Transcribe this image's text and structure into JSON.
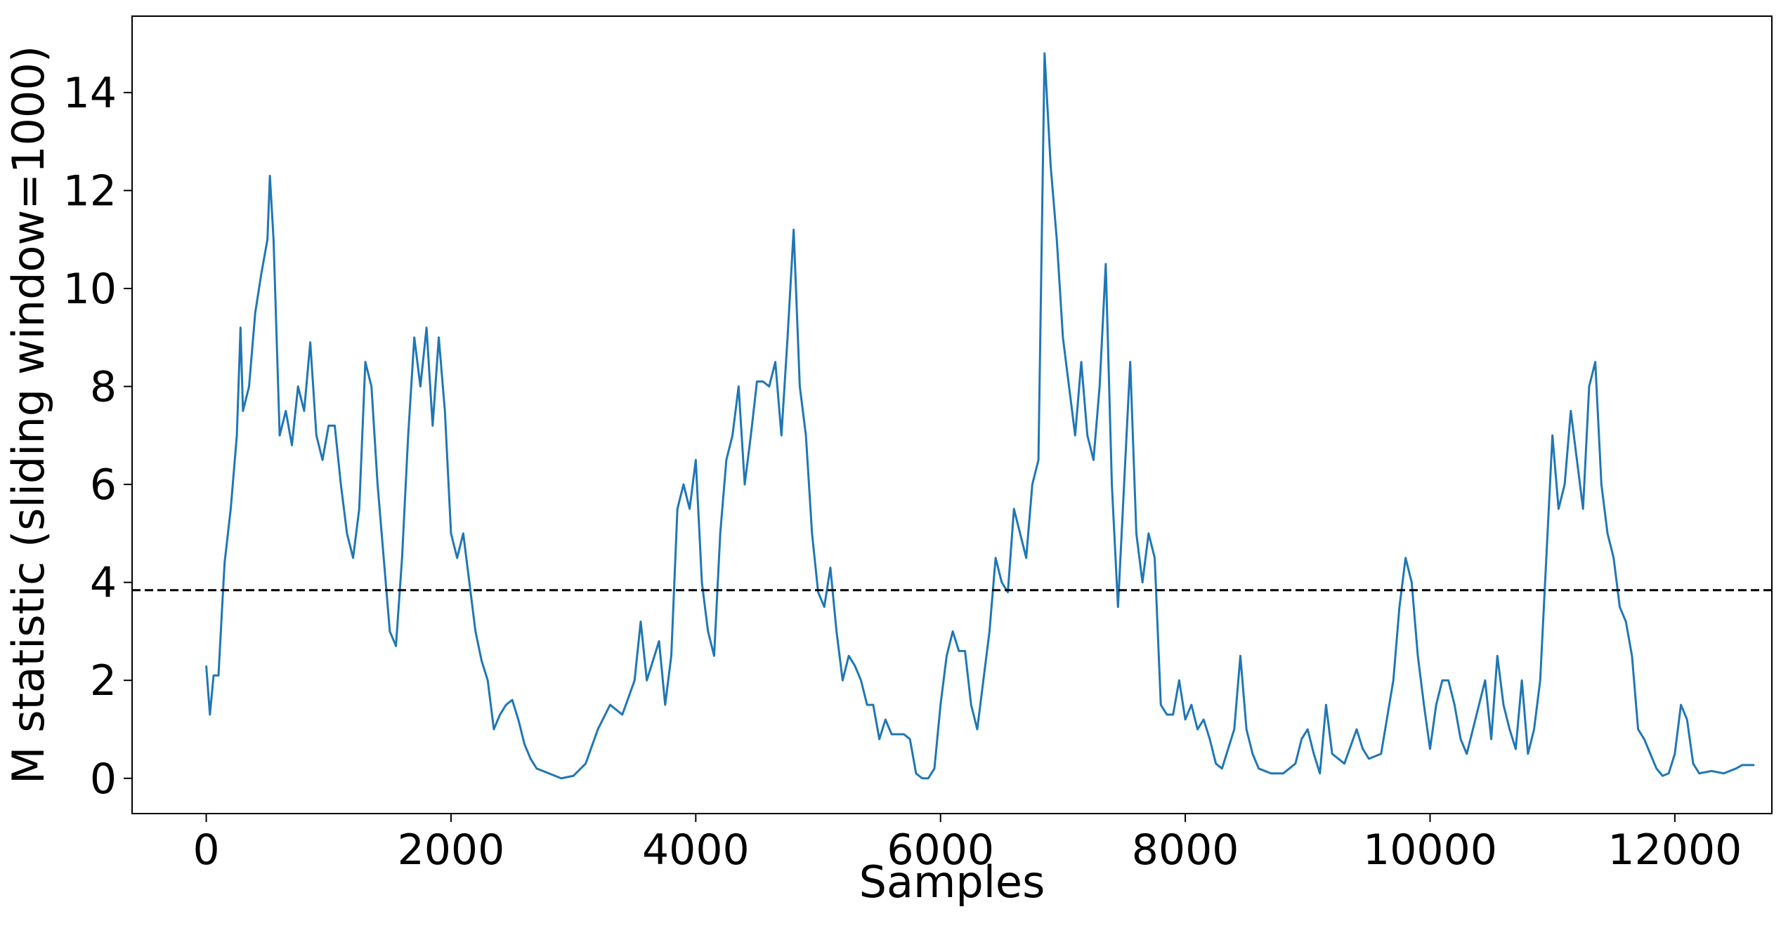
{
  "chart_data": {
    "type": "line",
    "xlabel": "Samples",
    "ylabel": "M statistic (sliding window=1000)",
    "xlim": [
      -606,
      12793
    ],
    "ylim": [
      -0.72,
      15.56
    ],
    "xticks": [
      0,
      2000,
      4000,
      6000,
      8000,
      10000,
      12000
    ],
    "yticks": [
      0,
      2,
      4,
      6,
      8,
      10,
      12,
      14
    ],
    "threshold": 3.84,
    "threshold_color": "#000000",
    "grid": false,
    "x": [
      0,
      30,
      60,
      100,
      130,
      150,
      200,
      250,
      280,
      300,
      350,
      400,
      450,
      500,
      520,
      550,
      600,
      650,
      700,
      750,
      800,
      850,
      900,
      950,
      1000,
      1050,
      1100,
      1150,
      1200,
      1250,
      1300,
      1350,
      1400,
      1450,
      1500,
      1550,
      1600,
      1650,
      1700,
      1750,
      1800,
      1850,
      1900,
      1950,
      2000,
      2050,
      2100,
      2150,
      2200,
      2250,
      2300,
      2350,
      2400,
      2450,
      2500,
      2550,
      2600,
      2650,
      2700,
      2800,
      2900,
      3000,
      3100,
      3200,
      3300,
      3400,
      3500,
      3550,
      3600,
      3700,
      3750,
      3800,
      3850,
      3900,
      3950,
      4000,
      4050,
      4100,
      4150,
      4200,
      4250,
      4300,
      4350,
      4400,
      4450,
      4500,
      4550,
      4600,
      4650,
      4700,
      4750,
      4800,
      4850,
      4900,
      4950,
      5000,
      5050,
      5100,
      5150,
      5200,
      5250,
      5300,
      5350,
      5400,
      5450,
      5500,
      5550,
      5600,
      5700,
      5750,
      5800,
      5850,
      5900,
      5950,
      6000,
      6050,
      6100,
      6150,
      6200,
      6250,
      6300,
      6350,
      6400,
      6450,
      6500,
      6550,
      6600,
      6650,
      6700,
      6750,
      6800,
      6850,
      6900,
      6950,
      7000,
      7050,
      7100,
      7150,
      7200,
      7250,
      7300,
      7350,
      7400,
      7450,
      7500,
      7550,
      7600,
      7650,
      7700,
      7750,
      7800,
      7850,
      7900,
      7950,
      8000,
      8050,
      8100,
      8150,
      8200,
      8250,
      8300,
      8400,
      8450,
      8500,
      8550,
      8600,
      8700,
      8800,
      8900,
      8950,
      9000,
      9050,
      9100,
      9150,
      9200,
      9300,
      9400,
      9450,
      9500,
      9600,
      9700,
      9750,
      9800,
      9850,
      9900,
      9950,
      10000,
      10050,
      10100,
      10150,
      10200,
      10250,
      10300,
      10350,
      10400,
      10450,
      10500,
      10550,
      10600,
      10650,
      10700,
      10750,
      10800,
      10850,
      10900,
      10950,
      11000,
      11050,
      11100,
      11150,
      11200,
      11250,
      11300,
      11350,
      11400,
      11450,
      11500,
      11550,
      11600,
      11650,
      11700,
      11750,
      11800,
      11850,
      11900,
      11950,
      12000,
      12050,
      12100,
      12150,
      12200,
      12300,
      12400,
      12500,
      12550,
      12650
    ],
    "series": [
      {
        "color": "#1f77b4",
        "values": [
          2.3,
          1.3,
          2.1,
          2.1,
          3.5,
          4.4,
          5.5,
          7.0,
          9.2,
          7.5,
          8.0,
          9.5,
          10.3,
          11.0,
          12.3,
          11.0,
          7.0,
          7.5,
          6.8,
          8.0,
          7.5,
          8.9,
          7.0,
          6.5,
          7.2,
          7.2,
          6.0,
          5.0,
          4.5,
          5.5,
          8.5,
          8.0,
          6.0,
          4.5,
          3.0,
          2.7,
          4.5,
          7.0,
          9.0,
          8.0,
          9.2,
          7.2,
          9.0,
          7.5,
          5.0,
          4.5,
          5.0,
          4.0,
          3.0,
          2.4,
          2.0,
          1.0,
          1.3,
          1.5,
          1.6,
          1.2,
          0.7,
          0.4,
          0.2,
          0.1,
          0.0,
          0.05,
          0.3,
          1.0,
          1.5,
          1.3,
          2.0,
          3.2,
          2.0,
          2.8,
          1.5,
          2.5,
          5.5,
          6.0,
          5.5,
          6.5,
          4.0,
          3.0,
          2.5,
          5.0,
          6.5,
          7.0,
          8.0,
          6.0,
          7.0,
          8.1,
          8.1,
          8.0,
          8.5,
          7.0,
          9.0,
          11.2,
          8.0,
          7.0,
          5.0,
          3.8,
          3.5,
          4.3,
          3.0,
          2.0,
          2.5,
          2.3,
          2.0,
          1.5,
          1.5,
          0.8,
          1.2,
          0.9,
          0.9,
          0.8,
          0.1,
          0.0,
          0.0,
          0.2,
          1.5,
          2.5,
          3.0,
          2.6,
          2.6,
          1.5,
          1.0,
          2.0,
          3.0,
          4.5,
          4.0,
          3.8,
          5.5,
          5.0,
          4.5,
          6.0,
          6.5,
          14.8,
          12.5,
          11.0,
          9.0,
          8.0,
          7.0,
          8.5,
          7.0,
          6.5,
          8.0,
          10.5,
          6.0,
          3.5,
          6.0,
          8.5,
          5.0,
          4.0,
          5.0,
          4.5,
          1.5,
          1.3,
          1.3,
          2.0,
          1.2,
          1.5,
          1.0,
          1.2,
          0.8,
          0.3,
          0.2,
          1.0,
          2.5,
          1.0,
          0.5,
          0.2,
          0.1,
          0.1,
          0.3,
          0.8,
          1.0,
          0.5,
          0.1,
          1.5,
          0.5,
          0.3,
          1.0,
          0.6,
          0.4,
          0.5,
          2.0,
          3.5,
          4.5,
          4.0,
          2.5,
          1.5,
          0.6,
          1.5,
          2.0,
          2.0,
          1.5,
          0.8,
          0.5,
          1.0,
          1.5,
          2.0,
          0.8,
          2.5,
          1.5,
          1.0,
          0.6,
          2.0,
          0.5,
          1.0,
          2.0,
          4.5,
          7.0,
          5.5,
          6.0,
          7.5,
          6.5,
          5.5,
          8.0,
          8.5,
          6.0,
          5.0,
          4.5,
          3.5,
          3.2,
          2.5,
          1.0,
          0.8,
          0.5,
          0.2,
          0.05,
          0.1,
          0.5,
          1.5,
          1.2,
          0.3,
          0.1,
          0.15,
          0.1,
          0.2,
          0.27,
          0.27
        ]
      }
    ]
  }
}
